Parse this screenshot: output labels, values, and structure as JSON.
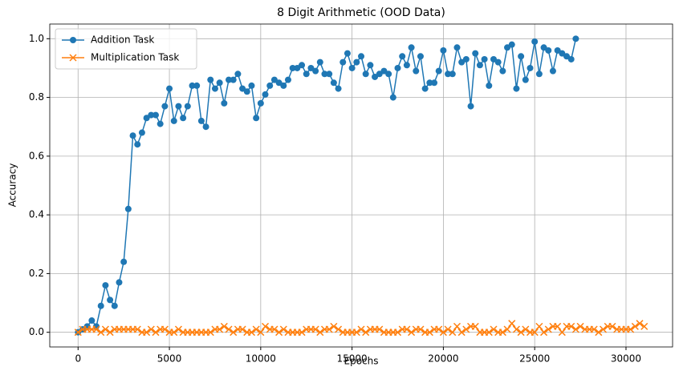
{
  "chart_data": {
    "type": "line",
    "title": "8 Digit Arithmetic (OOD Data)",
    "xlabel": "Epochs",
    "ylabel": "Accuracy",
    "xlim": [
      -1550,
      32550
    ],
    "ylim": [
      -0.05,
      1.05
    ],
    "xticks": [
      0,
      5000,
      10000,
      15000,
      20000,
      25000,
      30000
    ],
    "yticks": [
      {
        "value": 0,
        "label": "0.0"
      },
      {
        "value": 0.2,
        "label": "0.2"
      },
      {
        "value": 0.4,
        "label": "0.4"
      },
      {
        "value": 0.6,
        "label": "0.6"
      },
      {
        "value": 0.8,
        "label": "0.8"
      },
      {
        "value": 1,
        "label": "1.0"
      }
    ],
    "grid": true,
    "legend": "upper left",
    "series": [
      {
        "name": "Addition Task",
        "color": "#1f77b4",
        "marker": "o",
        "x": [
          0,
          250,
          500,
          750,
          1000,
          1250,
          1500,
          1750,
          2000,
          2250,
          2500,
          2750,
          3000,
          3250,
          3500,
          3750,
          4000,
          4250,
          4500,
          4750,
          5000,
          5250,
          5500,
          5750,
          6000,
          6250,
          6500,
          6750,
          7000,
          7250,
          7500,
          7750,
          8000,
          8250,
          8500,
          8750,
          9000,
          9250,
          9500,
          9750,
          10000,
          10250,
          10500,
          10750,
          11000,
          11250,
          11500,
          11750,
          12000,
          12250,
          12500,
          12750,
          13000,
          13250,
          13500,
          13750,
          14000,
          14250,
          14500,
          14750,
          15000,
          15250,
          15500,
          15750,
          16000,
          16250,
          16500,
          16750,
          17000,
          17250,
          17500,
          17750,
          18000,
          18250,
          18500,
          18750,
          19000,
          19250,
          19500,
          19750,
          20000,
          20250,
          20500,
          20750,
          21000,
          21250,
          21500,
          21750,
          22000,
          22250,
          22500,
          22750,
          23000,
          23250,
          23500,
          23750,
          24000,
          24250,
          24500,
          24750,
          25000,
          25250,
          25500,
          25750,
          26000,
          26250,
          26500,
          26750,
          27000,
          27250
        ],
        "values": [
          0,
          0.01,
          0.02,
          0.04,
          0.02,
          0.09,
          0.16,
          0.11,
          0.09,
          0.17,
          0.24,
          0.42,
          0.67,
          0.64,
          0.68,
          0.73,
          0.74,
          0.74,
          0.71,
          0.77,
          0.83,
          0.72,
          0.77,
          0.73,
          0.77,
          0.84,
          0.84,
          0.72,
          0.7,
          0.86,
          0.83,
          0.85,
          0.78,
          0.86,
          0.86,
          0.88,
          0.83,
          0.82,
          0.84,
          0.73,
          0.78,
          0.81,
          0.84,
          0.86,
          0.85,
          0.84,
          0.86,
          0.9,
          0.9,
          0.91,
          0.88,
          0.9,
          0.89,
          0.92,
          0.88,
          0.88,
          0.85,
          0.83,
          0.92,
          0.95,
          0.9,
          0.92,
          0.94,
          0.88,
          0.91,
          0.87,
          0.88,
          0.89,
          0.88,
          0.8,
          0.9,
          0.94,
          0.91,
          0.97,
          0.89,
          0.94,
          0.83,
          0.85,
          0.85,
          0.89,
          0.96,
          0.88,
          0.88,
          0.97,
          0.92,
          0.93,
          0.77,
          0.95,
          0.91,
          0.93,
          0.84,
          0.93,
          0.92,
          0.89,
          0.97,
          0.98,
          0.83,
          0.94,
          0.86,
          0.9,
          0.99,
          0.88,
          0.97,
          0.96,
          0.89,
          0.96,
          0.95,
          0.94,
          0.93,
          1.0
        ]
      },
      {
        "name": "Multiplication Task",
        "color": "#ff7f0e",
        "marker": "x",
        "x": [
          0,
          250,
          500,
          750,
          1000,
          1250,
          1500,
          1750,
          2000,
          2250,
          2500,
          2750,
          3000,
          3250,
          3500,
          3750,
          4000,
          4250,
          4500,
          4750,
          5000,
          5250,
          5500,
          5750,
          6000,
          6250,
          6500,
          6750,
          7000,
          7250,
          7500,
          7750,
          8000,
          8250,
          8500,
          8750,
          9000,
          9250,
          9500,
          9750,
          10000,
          10250,
          10500,
          10750,
          11000,
          11250,
          11500,
          11750,
          12000,
          12250,
          12500,
          12750,
          13000,
          13250,
          13500,
          13750,
          14000,
          14250,
          14500,
          14750,
          15000,
          15250,
          15500,
          15750,
          16000,
          16250,
          16500,
          16750,
          17000,
          17250,
          17500,
          17750,
          18000,
          18250,
          18500,
          18750,
          19000,
          19250,
          19500,
          19750,
          20000,
          20250,
          20500,
          20750,
          21000,
          21250,
          21500,
          21750,
          22000,
          22250,
          22500,
          22750,
          23000,
          23250,
          23500,
          23750,
          24000,
          24250,
          24500,
          24750,
          25000,
          25250,
          25500,
          25750,
          26000,
          26250,
          26500,
          26750,
          27000,
          27250,
          27500,
          27750,
          28000,
          28250,
          28500,
          28750,
          29000,
          29250,
          29500,
          29750,
          30000,
          30250,
          30500,
          30750,
          31000
        ],
        "values": [
          0,
          0.01,
          0.01,
          0.01,
          0.01,
          0,
          0.01,
          0,
          0.01,
          0.01,
          0.01,
          0.01,
          0.01,
          0.01,
          0,
          0,
          0.01,
          0,
          0.01,
          0.01,
          0,
          0,
          0.01,
          0,
          0,
          0,
          0,
          0,
          0,
          0,
          0.01,
          0.01,
          0.02,
          0.01,
          0,
          0.01,
          0.01,
          0,
          0,
          0.01,
          0,
          0.02,
          0.01,
          0.01,
          0,
          0.01,
          0,
          0,
          0,
          0,
          0.01,
          0.01,
          0.01,
          0,
          0.01,
          0.01,
          0.02,
          0.01,
          0,
          0,
          0,
          0,
          0.01,
          0,
          0.01,
          0.01,
          0.01,
          0,
          0,
          0,
          0,
          0.01,
          0.01,
          0,
          0.01,
          0.01,
          0,
          0,
          0.01,
          0.01,
          0,
          0.01,
          0,
          0.02,
          0,
          0.01,
          0.02,
          0.02,
          0,
          0,
          0,
          0.01,
          0,
          0,
          0.01,
          0.03,
          0.01,
          0,
          0.01,
          0,
          0,
          0.02,
          0,
          0.01,
          0.02,
          0.02,
          0,
          0.02,
          0.02,
          0.01,
          0.02,
          0.01,
          0.01,
          0.01,
          0,
          0.01,
          0.02,
          0.02,
          0.01,
          0.01,
          0.01,
          0.01,
          0.02,
          0.03,
          0.02
        ]
      }
    ]
  }
}
